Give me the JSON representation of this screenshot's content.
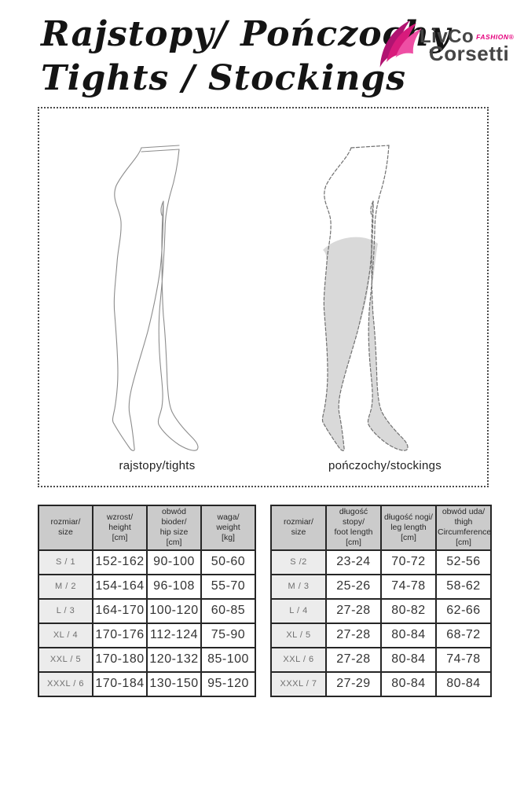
{
  "colors": {
    "logo_pink": "#d81b7c",
    "table_header_bg": "#cbcbcb",
    "size_column_bg": "#ececec",
    "stocking_fill": "#d9d9d9",
    "text_dark": "#333333"
  },
  "header": {
    "title_line1": "Rajstopy/ Pończochy",
    "title_line2": "Tights / Stockings",
    "logo": {
      "brand": "LivCo",
      "fashion": "FASHION®",
      "corsetti": "Corsetti"
    }
  },
  "figures": {
    "tights_label": "rajstopy/tights",
    "stockings_label": "pończochy/stockings"
  },
  "tables": {
    "tights": {
      "headers": [
        "rozmiar/\nsize",
        "wzrost/\nheight\n[cm]",
        "obwód bioder/\nhip size\n[cm]",
        "waga/\nweight\n[kg]"
      ],
      "rows": [
        [
          "S / 1",
          "152-162",
          "90-100",
          "50-60"
        ],
        [
          "M / 2",
          "154-164",
          "96-108",
          "55-70"
        ],
        [
          "L / 3",
          "164-170",
          "100-120",
          "60-85"
        ],
        [
          "XL / 4",
          "170-176",
          "112-124",
          "75-90"
        ],
        [
          "XXL / 5",
          "170-180",
          "120-132",
          "85-100"
        ],
        [
          "XXXL / 6",
          "170-184",
          "130-150",
          "95-120"
        ]
      ]
    },
    "stockings": {
      "headers": [
        "rozmiar/\nsize",
        "długość stopy/\nfoot length\n[cm]",
        "długość nogi/\nleg length\n[cm]",
        "obwód uda/\nthigh\nCircumference\n[cm]"
      ],
      "rows": [
        [
          "S /2",
          "23-24",
          "70-72",
          "52-56"
        ],
        [
          "M / 3",
          "25-26",
          "74-78",
          "58-62"
        ],
        [
          "L / 4",
          "27-28",
          "80-82",
          "62-66"
        ],
        [
          "XL / 5",
          "27-28",
          "80-84",
          "68-72"
        ],
        [
          "XXL / 6",
          "27-28",
          "80-84",
          "74-78"
        ],
        [
          "XXXL / 7",
          "27-29",
          "80-84",
          "80-84"
        ]
      ]
    }
  }
}
